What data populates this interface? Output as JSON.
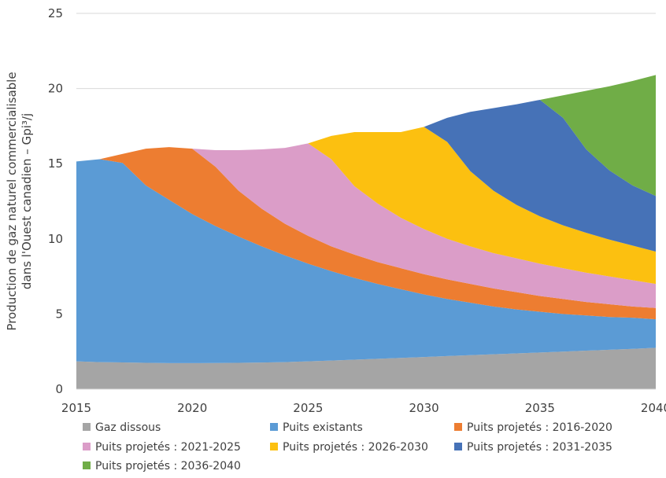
{
  "chart_data": {
    "type": "area",
    "stacked": true,
    "ylabel": [
      "Production de gaz naturel commercialisable",
      "dans l'Ouest canadien – Gpi³/j"
    ],
    "xlabel": "",
    "xlim": [
      2015,
      2040
    ],
    "ylim": [
      0,
      25
    ],
    "x_ticks": [
      "2015",
      "2020",
      "2025",
      "2030",
      "2035",
      "2040"
    ],
    "y_ticks": [
      "0",
      "5",
      "10",
      "15",
      "20",
      "25"
    ],
    "grid": true,
    "legend_position": "bottom",
    "x": [
      2015,
      2016,
      2017,
      2018,
      2019,
      2020,
      2021,
      2022,
      2023,
      2024,
      2025,
      2026,
      2027,
      2028,
      2029,
      2030,
      2031,
      2032,
      2033,
      2034,
      2035,
      2036,
      2037,
      2038,
      2039,
      2040
    ],
    "series": [
      {
        "name": "Gaz dissous",
        "color": "#A5A5A5",
        "values": [
          1.85,
          1.8,
          1.78,
          1.75,
          1.73,
          1.73,
          1.74,
          1.75,
          1.77,
          1.8,
          1.85,
          1.9,
          1.96,
          2.02,
          2.08,
          2.14,
          2.2,
          2.26,
          2.32,
          2.38,
          2.44,
          2.5,
          2.56,
          2.62,
          2.68,
          2.75
        ]
      },
      {
        "name": "Puits existants",
        "color": "#5B9BD5",
        "values": [
          13.3,
          13.5,
          13.27,
          11.8,
          10.87,
          9.92,
          9.11,
          8.4,
          7.73,
          7.1,
          6.5,
          5.95,
          5.44,
          4.98,
          4.57,
          4.16,
          3.8,
          3.49,
          3.18,
          2.92,
          2.71,
          2.5,
          2.34,
          2.18,
          2.07,
          1.9
        ]
      },
      {
        "name": "Puits projetés : 2016-2020",
        "color": "#ED7D31",
        "values": [
          0,
          0,
          0.6,
          2.45,
          3.5,
          4.35,
          3.95,
          3.05,
          2.5,
          2.1,
          1.85,
          1.65,
          1.55,
          1.45,
          1.4,
          1.35,
          1.3,
          1.25,
          1.2,
          1.15,
          1.05,
          1.0,
          0.9,
          0.85,
          0.75,
          0.75
        ]
      },
      {
        "name": "Puits projetés : 2021-2025",
        "color": "#DB9DC8",
        "values": [
          0,
          0,
          0,
          0,
          0,
          0,
          1.1,
          2.7,
          3.95,
          5.05,
          6.15,
          5.8,
          4.55,
          3.9,
          3.35,
          3.0,
          2.7,
          2.5,
          2.35,
          2.25,
          2.15,
          2.05,
          1.95,
          1.85,
          1.75,
          1.6
        ]
      },
      {
        "name": "Puits projetés : 2026-2030",
        "color": "#FCC010",
        "values": [
          0,
          0,
          0,
          0,
          0,
          0,
          0,
          0,
          0,
          0,
          0,
          1.55,
          3.6,
          4.75,
          5.7,
          6.8,
          6.45,
          5.0,
          4.15,
          3.55,
          3.15,
          2.85,
          2.65,
          2.45,
          2.3,
          2.15
        ]
      },
      {
        "name": "Puits projetés : 2031-2035",
        "color": "#4672B7",
        "values": [
          0,
          0,
          0,
          0,
          0,
          0,
          0,
          0,
          0,
          0,
          0,
          0,
          0,
          0,
          0,
          0,
          1.6,
          3.95,
          5.5,
          6.7,
          7.75,
          7.15,
          5.55,
          4.6,
          4.0,
          3.7
        ]
      },
      {
        "name": "Puits projetés : 2036-2040",
        "color": "#70AD47",
        "values": [
          0,
          0,
          0,
          0,
          0,
          0,
          0,
          0,
          0,
          0,
          0,
          0,
          0,
          0,
          0,
          0,
          0,
          0,
          0,
          0,
          0,
          1.5,
          3.9,
          5.6,
          6.95,
          8.05
        ]
      }
    ]
  }
}
